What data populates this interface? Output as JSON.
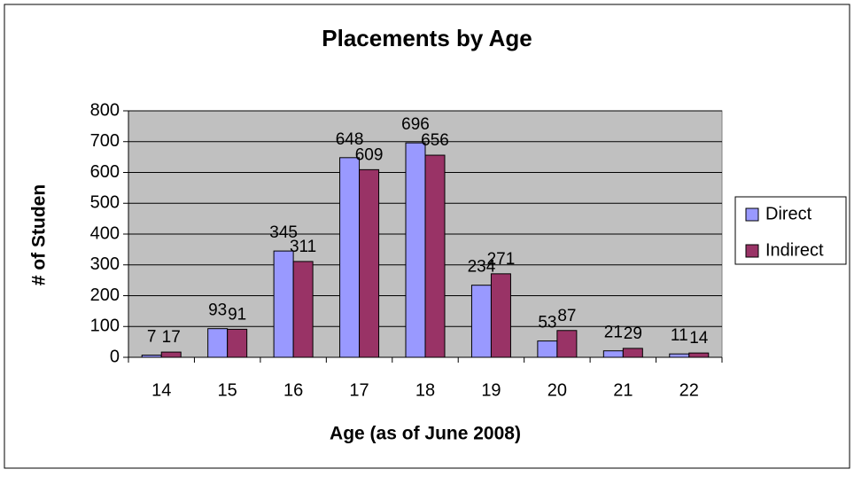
{
  "chart_data": {
    "type": "bar",
    "title": "Placements by Age",
    "x_label": "Age (as of June 2008)",
    "y_label": "# of Studen",
    "categories": [
      "14",
      "15",
      "16",
      "17",
      "18",
      "19",
      "20",
      "21",
      "22"
    ],
    "series": [
      {
        "name": "Direct",
        "color": "#9999ff",
        "values": [
          7,
          93,
          345,
          648,
          696,
          234,
          53,
          21,
          11
        ]
      },
      {
        "name": "Indirect",
        "color": "#993366",
        "values": [
          17,
          91,
          311,
          609,
          656,
          271,
          87,
          29,
          14
        ]
      }
    ],
    "ylim": [
      0,
      800
    ],
    "yticks": [
      0,
      100,
      200,
      300,
      400,
      500,
      600,
      700,
      800
    ],
    "grid": true,
    "legend": "right",
    "plot_background": "#c0c0c0"
  }
}
